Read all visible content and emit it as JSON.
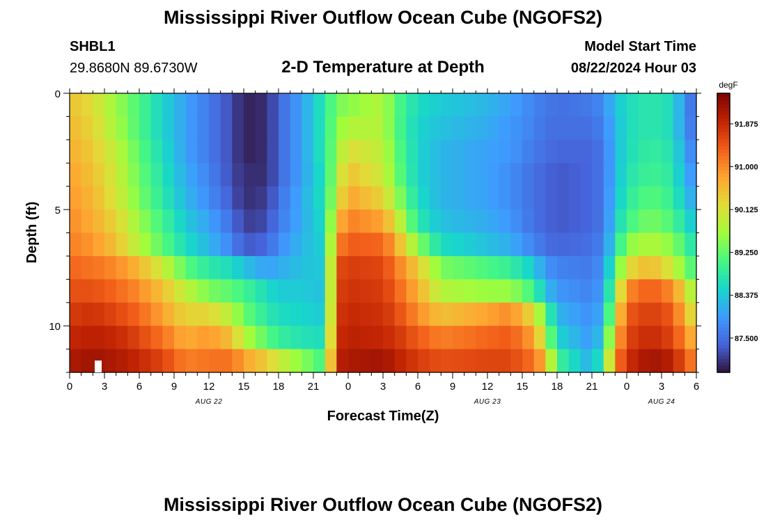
{
  "header": {
    "title": "Mississippi River Outflow Ocean Cube (NGOFS2)",
    "station_id": "SHBL1",
    "station_coords": "29.8680N  89.6730W",
    "subtitle": "2-D Temperature at Depth",
    "model_start_label": "Model Start Time",
    "model_start_value": "08/22/2024 Hour 03"
  },
  "footer": {
    "title": "Mississippi River Outflow Ocean Cube (NGOFS2)"
  },
  "chart_data": {
    "type": "heatmap",
    "title": "2-D Temperature at Depth",
    "xlabel": "Forecast Time(Z)",
    "ylabel": "Depth (ft)",
    "x_hours_range": [
      0,
      54
    ],
    "x_tick_labels": [
      "0",
      "3",
      "6",
      "9",
      "12",
      "15",
      "18",
      "21",
      "0",
      "3",
      "6",
      "9",
      "12",
      "15",
      "18",
      "21",
      "0",
      "3",
      "6"
    ],
    "date_labels": [
      {
        "text": "AUG 22",
        "hour": 12
      },
      {
        "text": "AUG 23",
        "hour": 36
      },
      {
        "text": "AUG 24",
        "hour": 51
      }
    ],
    "y_range_ft": [
      0,
      12
    ],
    "y_tick_labels": [
      "0",
      "5",
      "10"
    ],
    "depth_levels_ft": [
      0.5,
      1.5,
      2.5,
      3.5,
      4.5,
      5.5,
      6.5,
      7.5,
      8.5,
      9.5,
      10.5,
      11.5
    ],
    "colorbar": {
      "unit": "degF",
      "range": [
        86.8,
        92.5
      ],
      "tick_labels": [
        "91.875",
        "91.000",
        "90.125",
        "89.250",
        "88.375",
        "87.500"
      ],
      "tick_values": [
        91.875,
        91.0,
        90.125,
        89.25,
        88.375,
        87.5
      ]
    },
    "temperature_profiles_degF": [
      {
        "hour": 0,
        "values": [
          90.5,
          90.6,
          90.7,
          90.8,
          90.9,
          91.0,
          91.1,
          91.3,
          91.5,
          91.7,
          91.9,
          92.1
        ]
      },
      {
        "hour": 2,
        "values": [
          90.2,
          90.3,
          90.4,
          90.5,
          90.6,
          90.7,
          90.9,
          91.2,
          91.5,
          91.8,
          92.0,
          92.2
        ]
      },
      {
        "hour": 4,
        "values": [
          89.6,
          89.7,
          89.9,
          90.0,
          90.1,
          90.3,
          90.5,
          91.0,
          91.3,
          91.6,
          91.9,
          92.1
        ]
      },
      {
        "hour": 6,
        "values": [
          89.1,
          89.1,
          89.2,
          89.3,
          89.4,
          89.6,
          89.8,
          90.6,
          91.0,
          91.3,
          91.6,
          91.9
        ]
      },
      {
        "hour": 8,
        "values": [
          88.5,
          88.5,
          88.6,
          88.7,
          88.8,
          89.0,
          89.2,
          90.0,
          90.5,
          90.8,
          91.2,
          91.6
        ]
      },
      {
        "hour": 10,
        "values": [
          88.0,
          88.0,
          88.0,
          88.1,
          88.2,
          88.4,
          88.6,
          89.2,
          89.9,
          90.3,
          90.7,
          91.1
        ]
      },
      {
        "hour": 12,
        "values": [
          87.6,
          87.6,
          87.6,
          87.7,
          87.8,
          88.0,
          88.2,
          88.8,
          89.4,
          90.3,
          90.9,
          91.2
        ]
      },
      {
        "hour": 14,
        "values": [
          87.2,
          87.2,
          87.2,
          87.2,
          87.3,
          87.5,
          87.7,
          88.6,
          89.2,
          89.8,
          90.5,
          91.2
        ]
      },
      {
        "hour": 15,
        "values": [
          86.9,
          86.9,
          86.9,
          87.0,
          87.0,
          87.1,
          87.3,
          88.3,
          89.0,
          89.3,
          89.8,
          90.8
        ]
      },
      {
        "hour": 17,
        "values": [
          87.0,
          87.0,
          87.0,
          87.0,
          87.1,
          87.2,
          87.4,
          88.0,
          88.6,
          88.8,
          89.2,
          90.4
        ]
      },
      {
        "hour": 18,
        "values": [
          87.4,
          87.4,
          87.4,
          87.4,
          87.5,
          87.6,
          87.8,
          88.1,
          88.4,
          88.6,
          88.9,
          90.0
        ]
      },
      {
        "hour": 20,
        "values": [
          88.0,
          88.0,
          88.0,
          88.0,
          88.1,
          88.1,
          88.2,
          88.3,
          88.4,
          88.5,
          88.7,
          89.5
        ]
      },
      {
        "hour": 22,
        "values": [
          88.8,
          88.8,
          88.8,
          88.7,
          88.7,
          88.6,
          88.5,
          88.4,
          88.3,
          88.4,
          88.6,
          89.0
        ]
      },
      {
        "hour": 23,
        "values": [
          89.4,
          89.5,
          89.6,
          89.8,
          90.0,
          90.5,
          91.0,
          91.5,
          91.6,
          91.7,
          91.8,
          92.0
        ]
      },
      {
        "hour": 24,
        "values": [
          89.5,
          89.8,
          90.2,
          90.5,
          90.8,
          91.1,
          91.4,
          91.7,
          91.8,
          91.9,
          92.0,
          92.1
        ]
      },
      {
        "hour": 27,
        "values": [
          89.8,
          89.8,
          89.9,
          90.0,
          90.3,
          90.8,
          91.3,
          91.6,
          91.7,
          91.8,
          91.9,
          92.2
        ]
      },
      {
        "hour": 28,
        "values": [
          89.2,
          89.2,
          89.3,
          89.4,
          89.7,
          90.2,
          90.8,
          91.2,
          91.4,
          91.6,
          91.8,
          92.0
        ]
      },
      {
        "hour": 30,
        "values": [
          88.6,
          88.5,
          88.5,
          88.5,
          88.6,
          88.8,
          89.5,
          90.4,
          90.7,
          91.0,
          91.4,
          91.7
        ]
      },
      {
        "hour": 32,
        "values": [
          88.4,
          88.3,
          88.2,
          88.2,
          88.2,
          88.3,
          88.6,
          89.4,
          89.8,
          90.5,
          91.1,
          91.5
        ]
      },
      {
        "hour": 36,
        "values": [
          88.2,
          88.1,
          88.0,
          88.0,
          88.0,
          88.1,
          88.3,
          89.1,
          89.6,
          90.8,
          91.3,
          91.6
        ]
      },
      {
        "hour": 38,
        "values": [
          88.0,
          87.9,
          87.9,
          87.8,
          87.8,
          87.9,
          88.1,
          88.9,
          89.6,
          91.0,
          91.4,
          91.6
        ]
      },
      {
        "hour": 40,
        "values": [
          87.7,
          87.7,
          87.6,
          87.5,
          87.5,
          87.5,
          87.7,
          88.4,
          89.0,
          90.2,
          90.8,
          91.2
        ]
      },
      {
        "hour": 41,
        "values": [
          87.6,
          87.5,
          87.5,
          87.4,
          87.4,
          87.4,
          87.5,
          87.9,
          88.3,
          89.2,
          89.8,
          90.6
        ]
      },
      {
        "hour": 42,
        "values": [
          87.5,
          87.5,
          87.4,
          87.3,
          87.3,
          87.3,
          87.4,
          87.7,
          87.9,
          88.2,
          88.5,
          89.0
        ]
      },
      {
        "hour": 45,
        "values": [
          87.6,
          87.5,
          87.4,
          87.4,
          87.4,
          87.4,
          87.5,
          87.6,
          87.7,
          87.8,
          87.9,
          88.1
        ]
      },
      {
        "hour": 46,
        "values": [
          87.8,
          87.7,
          87.6,
          87.6,
          87.6,
          87.6,
          87.7,
          87.9,
          88.0,
          88.2,
          88.5,
          89.0
        ]
      },
      {
        "hour": 47,
        "values": [
          88.3,
          88.2,
          88.2,
          88.2,
          88.3,
          88.4,
          88.6,
          89.0,
          89.5,
          90.0,
          90.5,
          91.0
        ]
      },
      {
        "hour": 48,
        "values": [
          88.6,
          88.6,
          88.6,
          88.7,
          88.8,
          89.0,
          89.5,
          90.2,
          91.0,
          91.4,
          91.6,
          91.8
        ]
      },
      {
        "hour": 50,
        "values": [
          88.8,
          88.8,
          88.9,
          89.0,
          89.2,
          89.4,
          89.8,
          90.6,
          91.4,
          91.7,
          91.9,
          92.2
        ]
      },
      {
        "hour": 52,
        "values": [
          88.6,
          88.6,
          88.7,
          88.8,
          88.9,
          89.1,
          89.5,
          90.0,
          91.0,
          91.4,
          91.6,
          92.0
        ]
      },
      {
        "hour": 53,
        "values": [
          87.8,
          87.8,
          88.0,
          88.1,
          88.3,
          88.6,
          89.0,
          89.4,
          90.2,
          90.6,
          91.0,
          91.4
        ]
      },
      {
        "hour": 54,
        "values": [
          87.4,
          87.5,
          87.6,
          87.8,
          88.0,
          88.3,
          88.6,
          89.0,
          89.5,
          90.0,
          90.5,
          91.0
        ]
      }
    ]
  }
}
